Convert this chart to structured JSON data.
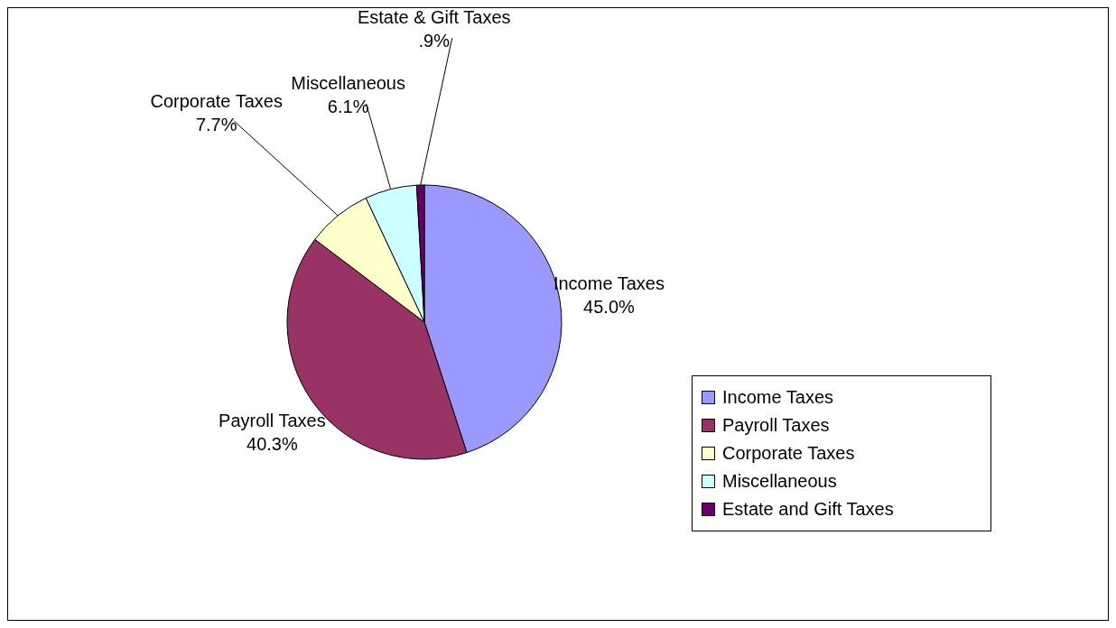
{
  "chart_data": {
    "type": "pie",
    "categories": [
      "Income Taxes",
      "Payroll Taxes",
      "Corporate Taxes",
      "Miscellaneous",
      "Estate and Gift Taxes"
    ],
    "values": [
      45.0,
      40.3,
      7.7,
      6.1,
      0.9
    ],
    "colors": [
      "#9999ff",
      "#993366",
      "#ffffcc",
      "#ccffff",
      "#660066"
    ],
    "value_labels": [
      "45.0%",
      "40.3%",
      "7.7%",
      "6.1%",
      ".9%"
    ],
    "annotations": [
      "Income Taxes",
      "Payroll Taxes",
      "Corporate Taxes",
      "Miscellaneous",
      "Estate & Gift Taxes"
    ],
    "legend": "bottom right"
  }
}
